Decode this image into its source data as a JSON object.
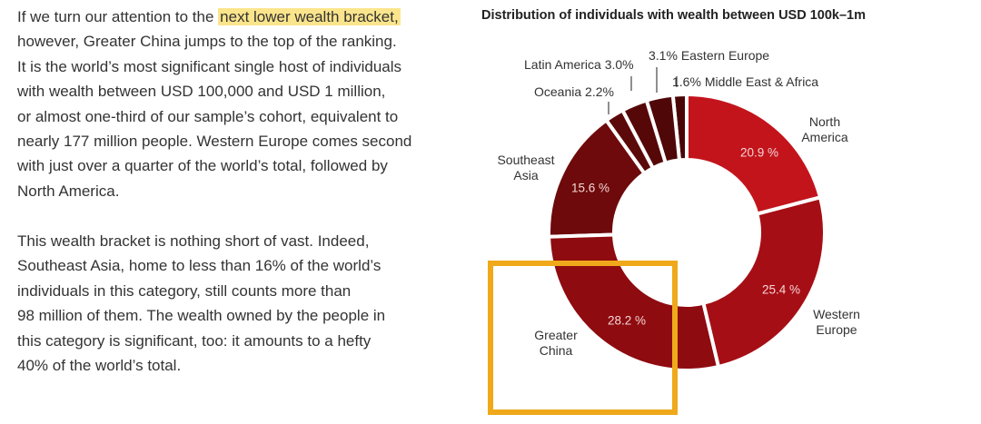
{
  "text": {
    "paragraph_1": {
      "lead": "If we turn our attention to the",
      "highlight": "next lower wealth bracket,",
      "lines": [
        "however, Greater China jumps to the top of the ranking.",
        "It is the world’s most significant single host of individuals",
        "with wealth between USD 100,000 and USD 1 million,",
        "or almost one-third of our sample’s cohort, equivalent to",
        "nearly 177 million people. Western Europe comes second",
        "with just over a quarter of the world’s total, followed by",
        "North America."
      ]
    },
    "paragraph_2": {
      "lines": [
        "This wealth bracket is nothing short of vast. Indeed,",
        "Southeast Asia, home to less than 16% of the world’s",
        "individuals in this category, still counts more than",
        "98 million of them. The wealth owned by the people in",
        "this category is significant, too: it amounts to a hefty",
        "40% of the world’s total."
      ]
    }
  },
  "chart_data": {
    "type": "donut",
    "title": "Distribution of individuals with wealth between USD 100k–1m",
    "categories": [
      "North America",
      "Western Europe",
      "Greater China",
      "Southeast Asia",
      "Oceania",
      "Latin America",
      "Eastern Europe",
      "Middle East & Africa"
    ],
    "values": [
      20.9,
      25.4,
      28.2,
      15.6,
      2.2,
      3.0,
      3.1,
      1.6
    ],
    "value_labels": [
      "20.9 %",
      "25.4 %",
      "28.2 %",
      "15.6 %",
      "2.2%",
      "3.0%",
      "3.1%",
      "1.6%"
    ],
    "colors": [
      "#c3141c",
      "#a60e15",
      "#8e0b10",
      "#6e0a0b",
      "#5c0909",
      "#560808",
      "#500707",
      "#4a0606"
    ]
  }
}
